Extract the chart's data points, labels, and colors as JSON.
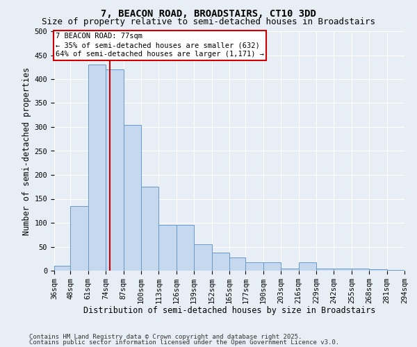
{
  "title1": "7, BEACON ROAD, BROADSTAIRS, CT10 3DD",
  "title2": "Size of property relative to semi-detached houses in Broadstairs",
  "xlabel": "Distribution of semi-detached houses by size in Broadstairs",
  "ylabel": "Number of semi-detached properties",
  "property_size": 77,
  "property_label": "7 BEACON ROAD: 77sqm",
  "pct_smaller": 35,
  "pct_larger": 64,
  "count_smaller": 632,
  "count_larger": 1171,
  "footnote1": "Contains HM Land Registry data © Crown copyright and database right 2025.",
  "footnote2": "Contains public sector information licensed under the Open Government Licence v3.0.",
  "bar_color": "#c5d8ed",
  "bar_edge_color": "#6699cc",
  "vline_color": "#cc0000",
  "annotation_box_edge": "#cc0000",
  "background_color": "#e8eef5",
  "bins": [
    36,
    48,
    61,
    74,
    87,
    100,
    113,
    126,
    139,
    152,
    165,
    177,
    190,
    203,
    216,
    229,
    242,
    255,
    268,
    281,
    294
  ],
  "bar_heights": [
    10,
    135,
    430,
    420,
    305,
    175,
    95,
    95,
    55,
    38,
    28,
    18,
    18,
    5,
    18,
    5,
    5,
    5,
    3,
    2
  ],
  "ylim": [
    0,
    500
  ],
  "yticks": [
    0,
    50,
    100,
    150,
    200,
    250,
    300,
    350,
    400,
    450,
    500
  ],
  "grid_color": "#ffffff",
  "title1_fontsize": 10,
  "title2_fontsize": 9,
  "axis_label_fontsize": 8.5,
  "tick_fontsize": 7.5,
  "annot_fontsize": 7.5,
  "footnote_fontsize": 6.5
}
